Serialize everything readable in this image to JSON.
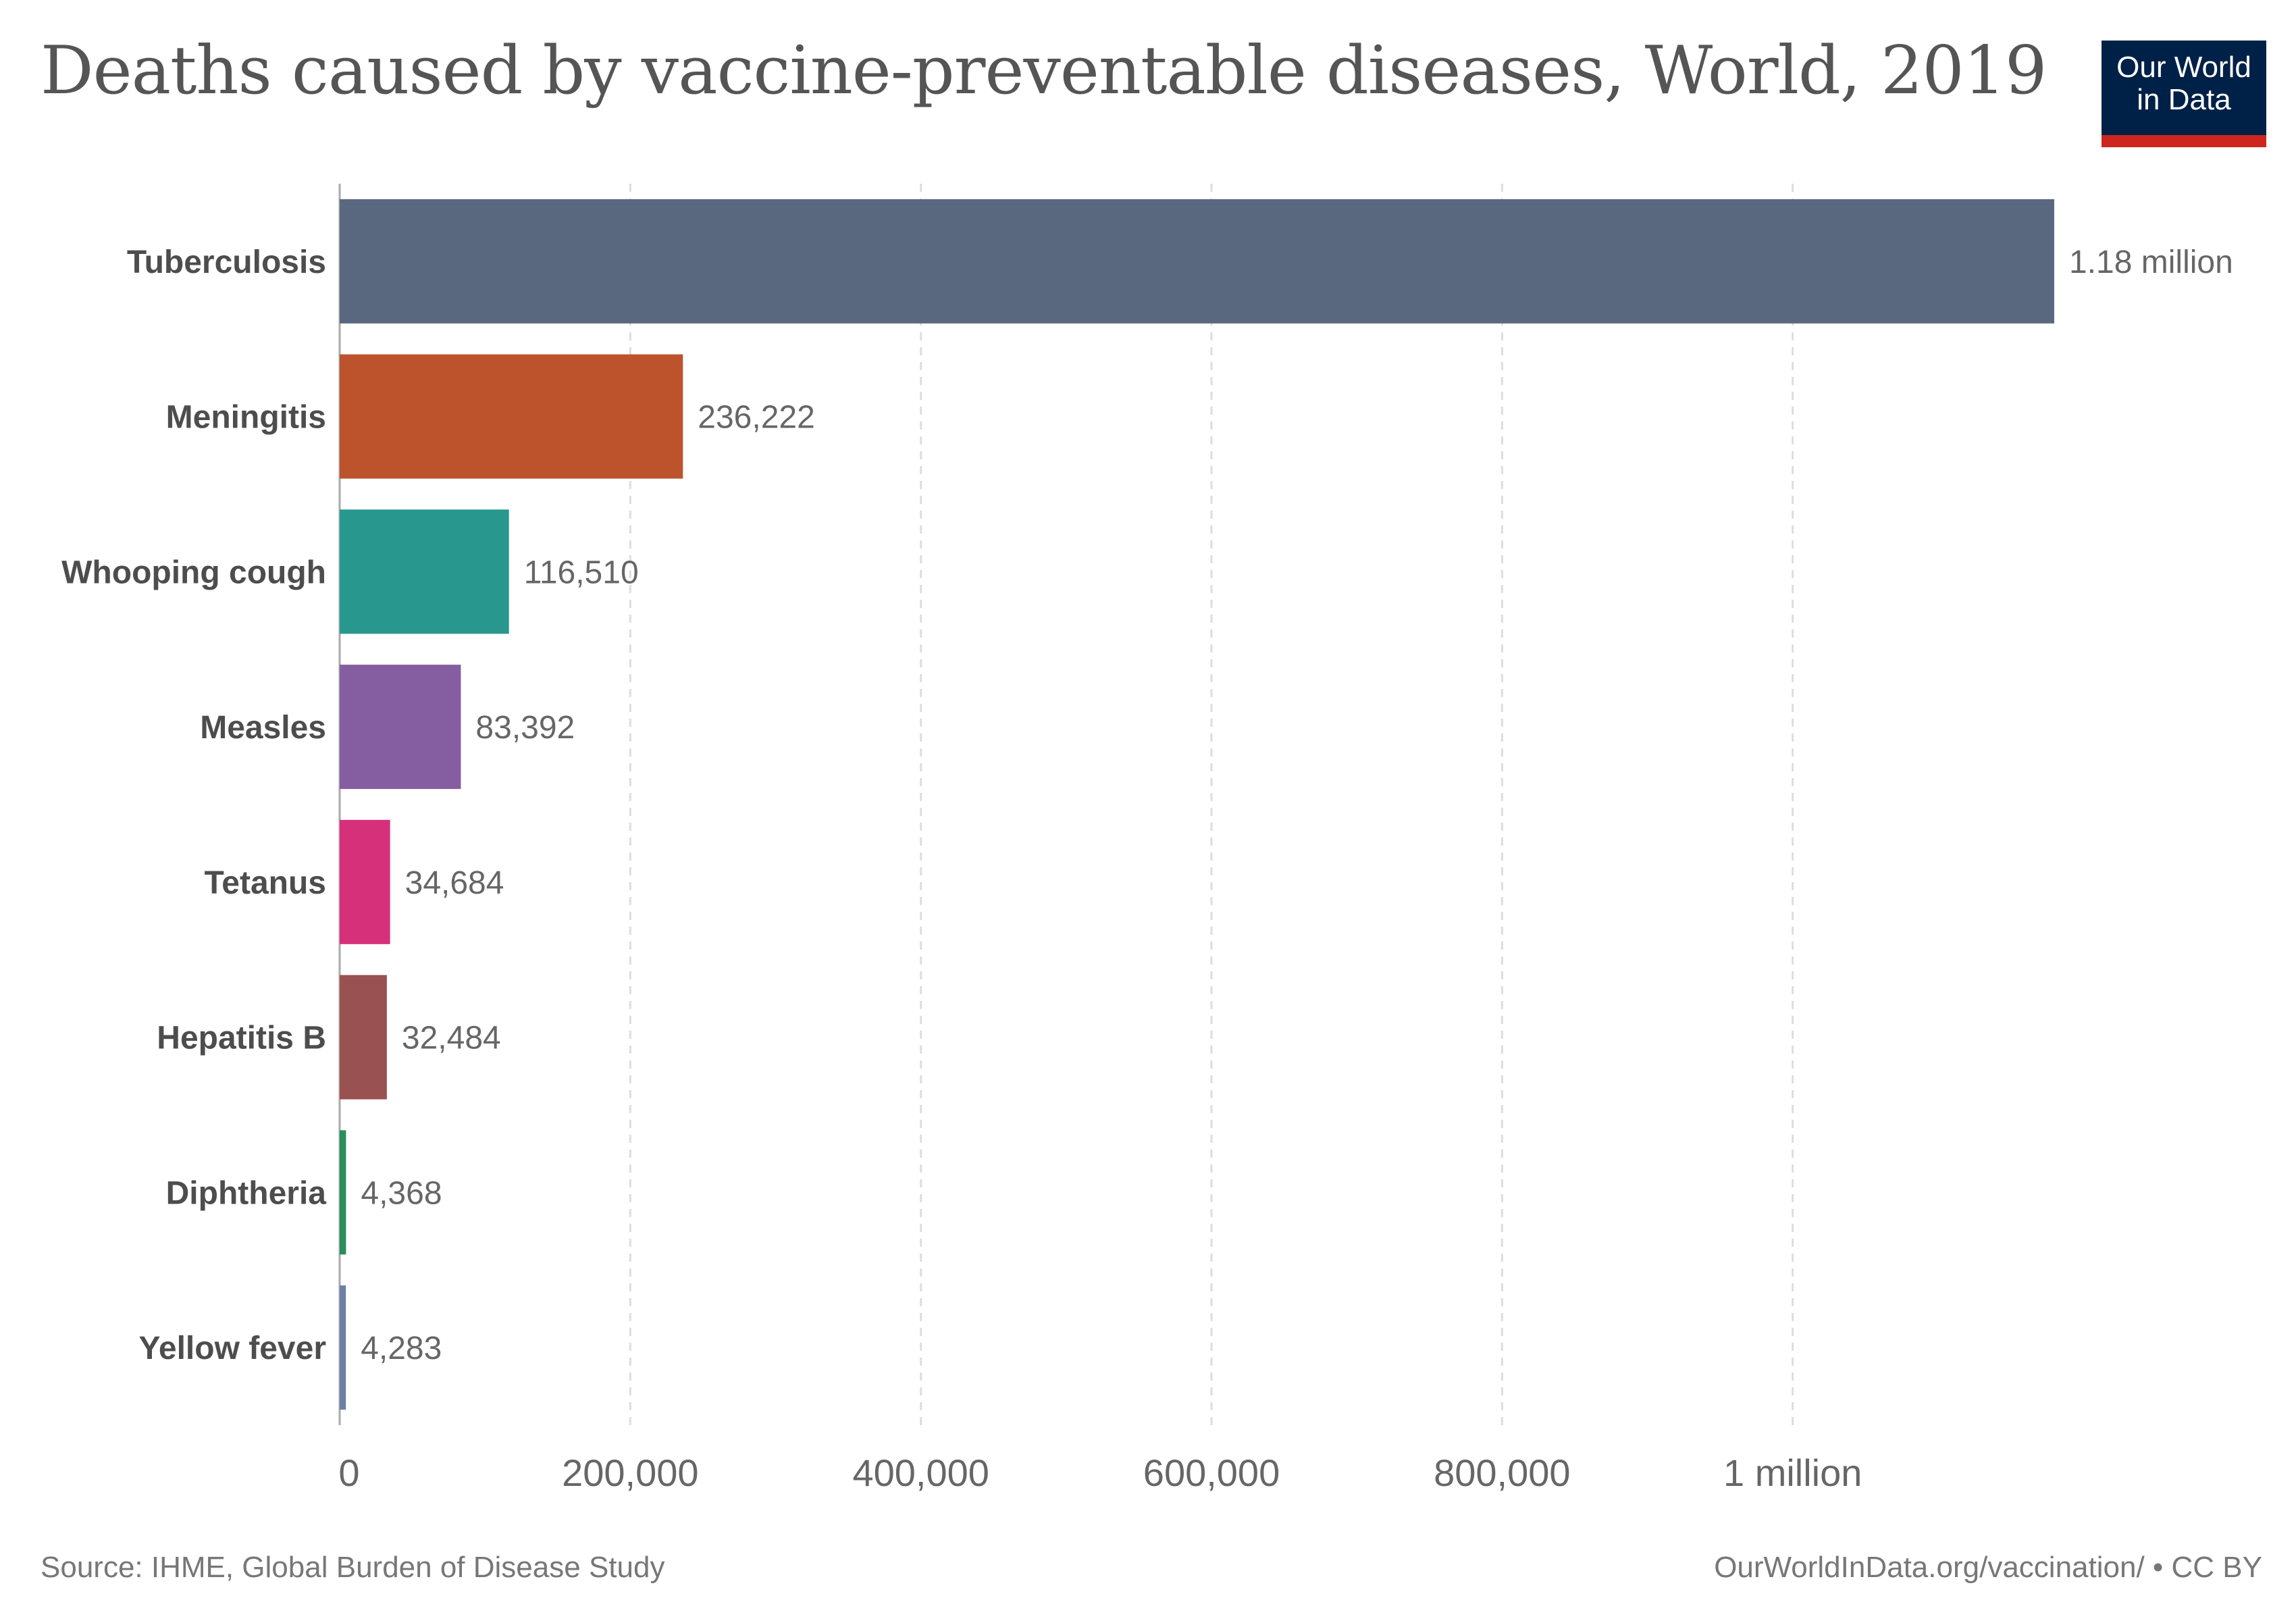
{
  "title": "Deaths caused by vaccine-preventable diseases, World, 2019",
  "logo": {
    "line1": "Our World",
    "line2": "in Data",
    "bg_color": "#002147",
    "accent_color": "#ce261e"
  },
  "footer": {
    "source": "Source: IHME, Global Burden of Disease Study",
    "license": "OurWorldInData.org/vaccination/ • CC BY"
  },
  "chart_data": {
    "type": "bar",
    "orientation": "horizontal",
    "title": "Deaths caused by vaccine-preventable diseases, World, 2019",
    "xlabel": "",
    "ylabel": "",
    "xlim": [
      0,
      1180000
    ],
    "grid": "vertical dashed",
    "categories": [
      "Tuberculosis",
      "Meningitis",
      "Whooping cough",
      "Measles",
      "Tetanus",
      "Hepatitis B",
      "Diphtheria",
      "Yellow fever"
    ],
    "values": [
      1180000,
      236222,
      116510,
      83392,
      34684,
      32484,
      4368,
      4283
    ],
    "value_labels": [
      "1.18 million",
      "236,222",
      "116,510",
      "83,392",
      "34,684",
      "32,484",
      "4,368",
      "4,283"
    ],
    "colors": [
      "#5a687f",
      "#bc532d",
      "#28988f",
      "#845ea0",
      "#d7307b",
      "#9a5152",
      "#2a8d5b",
      "#6e7fa6"
    ],
    "x_ticks": [
      0,
      200000,
      400000,
      600000,
      800000,
      1000000
    ],
    "x_tick_labels": [
      "0",
      "200,000",
      "400,000",
      "600,000",
      "800,000",
      "1 million"
    ]
  }
}
